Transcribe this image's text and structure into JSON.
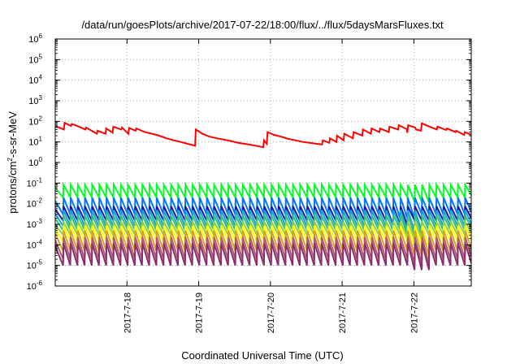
{
  "chart_data": {
    "type": "line",
    "title": "/data/run/goesPlots/archive/2017-07-22/18:00/flux/../flux/5daysMarsFluxes.txt",
    "xlabel": "Coordinated Universal Time (UTC)",
    "ylabel_main": "protons/cm",
    "ylabel_sup": "2",
    "ylabel_tail": "-s-sr-MeV",
    "yscale": "log",
    "ylim": [
      1e-06,
      1000000.0
    ],
    "xlim": [
      0,
      5.8
    ],
    "x_unit": "days after 2017-07-17 00:00 UTC",
    "grid": true,
    "legend": "none",
    "y_tick_labels": [
      {
        "base": "10",
        "exp": "-6"
      },
      {
        "base": "10",
        "exp": "-5"
      },
      {
        "base": "10",
        "exp": "-4"
      },
      {
        "base": "10",
        "exp": "-3"
      },
      {
        "base": "10",
        "exp": "-2"
      },
      {
        "base": "10",
        "exp": "-1"
      },
      {
        "base": "10",
        "exp": "0"
      },
      {
        "base": "10",
        "exp": "1"
      },
      {
        "base": "10",
        "exp": "2"
      },
      {
        "base": "10",
        "exp": "3"
      },
      {
        "base": "10",
        "exp": "4"
      },
      {
        "base": "10",
        "exp": "5"
      },
      {
        "base": "10",
        "exp": "6"
      }
    ],
    "x_ticks": [
      {
        "value": 1,
        "label": "2017-7-18"
      },
      {
        "value": 2,
        "label": "2017-7-19"
      },
      {
        "value": 3,
        "label": "2017-7-20"
      },
      {
        "value": 4,
        "label": "2017-7-21"
      },
      {
        "value": 5,
        "label": "2017-7-22"
      }
    ],
    "series": [
      {
        "color": "#ff0000",
        "width": 2,
        "points": [
          [
            0,
            60
          ],
          [
            0.12,
            40
          ],
          [
            0.13,
            85
          ],
          [
            0.22,
            60
          ],
          [
            0.23,
            75
          ],
          [
            0.33,
            55
          ],
          [
            0.42,
            40
          ],
          [
            0.43,
            50
          ],
          [
            0.58,
            25
          ],
          [
            0.59,
            35
          ],
          [
            0.7,
            25
          ],
          [
            0.71,
            45
          ],
          [
            0.8,
            28
          ],
          [
            0.81,
            55
          ],
          [
            0.92,
            40
          ],
          [
            0.93,
            50
          ],
          [
            1.02,
            25
          ],
          [
            1.03,
            48
          ],
          [
            1.12,
            35
          ],
          [
            1.13,
            45
          ],
          [
            1.25,
            30
          ],
          [
            1.35,
            25
          ],
          [
            1.45,
            20
          ],
          [
            1.55,
            15
          ],
          [
            1.65,
            12
          ],
          [
            1.75,
            10
          ],
          [
            1.85,
            8
          ],
          [
            1.95,
            6.5
          ],
          [
            1.96,
            40
          ],
          [
            2.05,
            25
          ],
          [
            2.15,
            18
          ],
          [
            2.25,
            15
          ],
          [
            2.35,
            13
          ],
          [
            2.45,
            11
          ],
          [
            2.55,
            9
          ],
          [
            2.65,
            8
          ],
          [
            2.75,
            7
          ],
          [
            2.85,
            6
          ],
          [
            2.9,
            5.5
          ],
          [
            2.91,
            12
          ],
          [
            2.95,
            8
          ],
          [
            2.96,
            30
          ],
          [
            3.05,
            22
          ],
          [
            3.15,
            18
          ],
          [
            3.25,
            14
          ],
          [
            3.35,
            12
          ],
          [
            3.45,
            10
          ],
          [
            3.55,
            9
          ],
          [
            3.65,
            8
          ],
          [
            3.72,
            7.5
          ],
          [
            3.73,
            12
          ],
          [
            3.82,
            9
          ],
          [
            3.83,
            15
          ],
          [
            3.92,
            10
          ],
          [
            3.93,
            20
          ],
          [
            4.02,
            12
          ],
          [
            4.03,
            25
          ],
          [
            4.15,
            15
          ],
          [
            4.16,
            30
          ],
          [
            4.28,
            20
          ],
          [
            4.29,
            40
          ],
          [
            4.4,
            25
          ],
          [
            4.41,
            45
          ],
          [
            4.52,
            30
          ],
          [
            4.53,
            45
          ],
          [
            4.65,
            30
          ],
          [
            4.66,
            55
          ],
          [
            4.78,
            40
          ],
          [
            4.79,
            65
          ],
          [
            4.9,
            42
          ],
          [
            4.91,
            28
          ],
          [
            4.92,
            65
          ],
          [
            5.02,
            50
          ],
          [
            5.03,
            40
          ],
          [
            5.1,
            35
          ],
          [
            5.11,
            80
          ],
          [
            5.22,
            55
          ],
          [
            5.32,
            40
          ],
          [
            5.33,
            55
          ],
          [
            5.45,
            38
          ],
          [
            5.46,
            45
          ],
          [
            5.58,
            30
          ],
          [
            5.59,
            35
          ],
          [
            5.7,
            22
          ],
          [
            5.71,
            30
          ],
          [
            5.8,
            22
          ]
        ]
      },
      {
        "color": "#00ff22",
        "width": 2,
        "generated": true,
        "base": 0.02,
        "amp": 4.2,
        "last_rise": 5.0
      },
      {
        "color": "#0077ff",
        "width": 2,
        "generated": true,
        "base": 0.003,
        "amp": 6.5,
        "last_rise": 4.8
      },
      {
        "color": "#1a1aa8",
        "width": 2,
        "generated": true,
        "base": 0.0015,
        "amp": 5.0,
        "last_rise": 4.7
      },
      {
        "color": "#16a6d8",
        "width": 2,
        "generated": true,
        "base": 0.0008,
        "amp": 6.0,
        "last_rise": 4.9
      },
      {
        "color": "#34c07d",
        "width": 2,
        "generated": true,
        "base": 0.0005,
        "amp": 5.5,
        "last_rise": 4.9
      },
      {
        "color": "#9acd32",
        "width": 2,
        "generated": true,
        "base": 0.0003,
        "amp": 4.5,
        "last_rise": 4.9
      },
      {
        "color": "#ffff00",
        "width": 2,
        "generated": true,
        "base": 0.00015,
        "amp": 5.5,
        "last_rise": 5.0
      },
      {
        "color": "#d7a21e",
        "width": 2,
        "generated": true,
        "base": 5e-05,
        "amp": 10.0,
        "last_rise": 5.0
      },
      {
        "color": "#b4596f",
        "width": 2,
        "generated": true,
        "base": 2e-05,
        "amp": 12.0,
        "last_rise": 5.0
      },
      {
        "color": "#8a2f6e",
        "width": 2,
        "generated": true,
        "base": 1e-05,
        "amp": 12.0,
        "last_rise": 5.0
      }
    ]
  }
}
